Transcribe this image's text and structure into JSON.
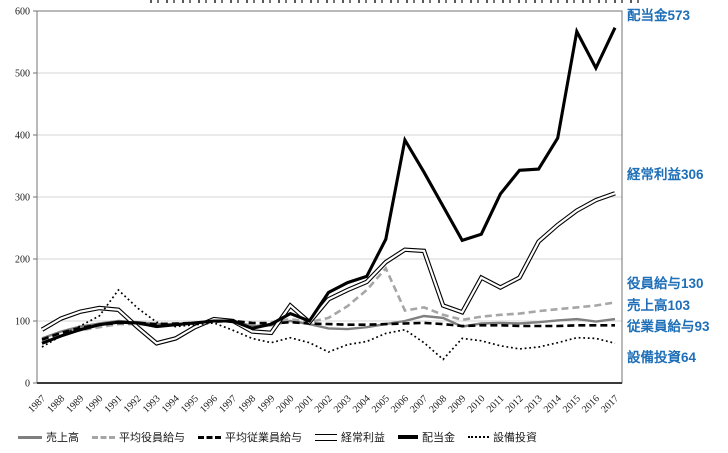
{
  "chart_data": {
    "type": "line",
    "x": [
      1987,
      1988,
      1989,
      1990,
      1991,
      1992,
      1993,
      1994,
      1995,
      1996,
      1997,
      1998,
      1999,
      2000,
      2001,
      2002,
      2003,
      2004,
      2005,
      2006,
      2007,
      2008,
      2009,
      2010,
      2011,
      2012,
      2013,
      2014,
      2015,
      2016,
      2017
    ],
    "ylim": [
      0,
      600
    ],
    "yticks": [
      0,
      100,
      200,
      300,
      400,
      500,
      600
    ],
    "grid": "horizontal",
    "legend_position": "bottom",
    "series": [
      {
        "name": "売上高",
        "key": "uriagedaka",
        "style": "solid",
        "color": "#7f7f7f",
        "width": 2.4,
        "values": [
          72,
          83,
          91,
          96,
          100,
          98,
          95,
          95,
          97,
          100,
          100,
          92,
          93,
          100,
          95,
          88,
          87,
          90,
          95,
          100,
          108,
          105,
          91,
          96,
          97,
          96,
          98,
          101,
          103,
          99,
          103
        ]
      },
      {
        "name": "平均役員給与",
        "key": "yakuin-kyuyo",
        "style": "dashed",
        "color": "#a6a6a6",
        "width": 2.6,
        "values": [
          68,
          78,
          85,
          90,
          95,
          95,
          93,
          95,
          97,
          100,
          100,
          96,
          98,
          103,
          98,
          105,
          124,
          150,
          185,
          117,
          122,
          110,
          102,
          107,
          110,
          112,
          116,
          119,
          122,
          125,
          130
        ]
      },
      {
        "name": "平均従業員給与",
        "key": "juugyoin-kyuyo",
        "style": "dashed",
        "color": "#000000",
        "width": 2.6,
        "values": [
          70,
          81,
          89,
          94,
          97,
          97,
          95,
          96,
          97,
          99,
          100,
          97,
          96,
          98,
          96,
          95,
          94,
          94,
          95,
          96,
          97,
          95,
          92,
          93,
          93,
          92,
          92,
          92,
          93,
          93,
          93
        ]
      },
      {
        "name": "経常利益",
        "key": "keijo-rieki",
        "style": "double",
        "color": "#000000",
        "width": 4.4,
        "values": [
          86,
          104,
          115,
          121,
          118,
          90,
          64,
          72,
          90,
          103,
          100,
          83,
          81,
          125,
          98,
          135,
          150,
          163,
          195,
          215,
          213,
          125,
          114,
          170,
          154,
          170,
          228,
          255,
          278,
          295,
          306
        ]
      },
      {
        "name": "配当金",
        "key": "haitokin",
        "style": "solid",
        "color": "#000000",
        "width": 3.1,
        "values": [
          64,
          76,
          86,
          94,
          98,
          97,
          91,
          94,
          97,
          100,
          100,
          88,
          95,
          112,
          100,
          146,
          162,
          172,
          232,
          392,
          340,
          285,
          230,
          240,
          305,
          343,
          345,
          395,
          567,
          508,
          573
        ]
      },
      {
        "name": "設備投資",
        "key": "setsubi-toshi",
        "style": "dotted",
        "color": "#000000",
        "width": 1.7,
        "values": [
          58,
          76,
          92,
          108,
          150,
          121,
          98,
          91,
          94,
          97,
          85,
          72,
          65,
          73,
          65,
          50,
          62,
          67,
          80,
          86,
          65,
          38,
          72,
          68,
          60,
          55,
          58,
          65,
          73,
          72,
          64
        ]
      }
    ],
    "end_labels": [
      {
        "text": "配当金573"
      },
      {
        "text": "経常利益306"
      },
      {
        "text": "役員給与130"
      },
      {
        "text": "売上高103"
      },
      {
        "text": "従業員給与93"
      },
      {
        "text": "設備投資64"
      }
    ],
    "end_label_color": "#1e6fb8"
  }
}
